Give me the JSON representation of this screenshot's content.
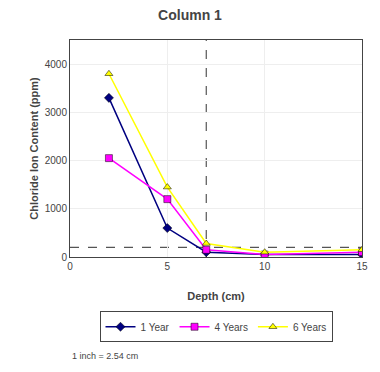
{
  "chart_data": {
    "type": "line",
    "title": "Column 1",
    "x_label": "Depth (cm)",
    "y_label": "Chloride Ion Content (ppm)",
    "footnote": "1 inch = 2.54 cm",
    "series": [
      {
        "name": "1 Year",
        "x": [
          2,
          5,
          7,
          10,
          15
        ],
        "values": [
          3300,
          600,
          100,
          50,
          50
        ],
        "color": "#000080",
        "marker": "diamond"
      },
      {
        "name": "4 Years",
        "x": [
          2,
          5,
          7,
          10,
          15
        ],
        "values": [
          2050,
          1200,
          150,
          50,
          100
        ],
        "color": "#FF00FF",
        "marker": "square"
      },
      {
        "name": "6 Years",
        "x": [
          2,
          5,
          7,
          10,
          15
        ],
        "values": [
          3800,
          1450,
          280,
          100,
          150
        ],
        "color": "#FFFF00",
        "marker": "triangle-up"
      }
    ],
    "vline_x": 7,
    "hline_y": 200,
    "xlim": [
      0,
      15
    ],
    "ylim": [
      0,
      4500
    ],
    "xticks": [
      0,
      5,
      10,
      15
    ],
    "yticks": [
      0,
      1000,
      2000,
      3000,
      4000
    ],
    "grid": true,
    "legend": "bottom"
  }
}
